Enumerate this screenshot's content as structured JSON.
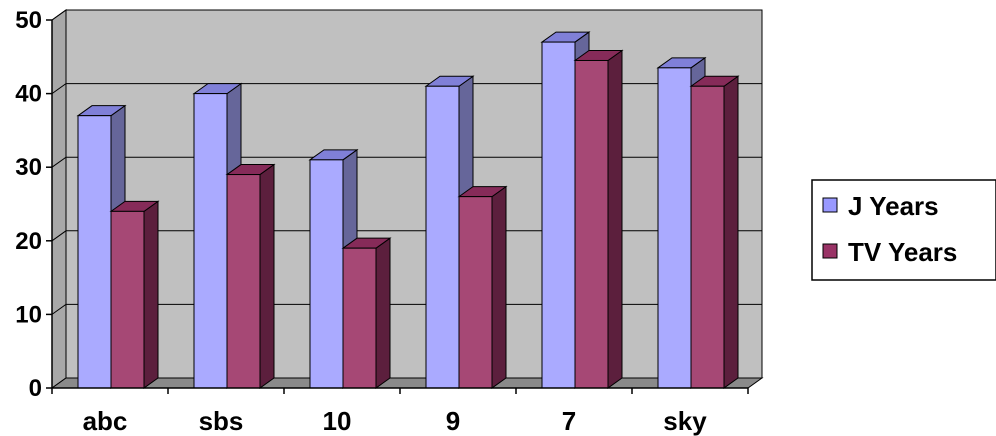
{
  "chart_data": {
    "type": "bar",
    "style": "3d-clustered-column",
    "categories": [
      "abc",
      "sbs",
      "10",
      "9",
      "7",
      "sky"
    ],
    "series": [
      {
        "name": "J Years",
        "values": [
          37,
          40,
          31,
          41,
          47,
          43.5
        ]
      },
      {
        "name": "TV Years",
        "values": [
          24,
          29,
          19,
          26,
          44.5,
          41
        ]
      }
    ],
    "yticks": [
      "0",
      "10",
      "20",
      "30",
      "40",
      "50"
    ],
    "ylim": [
      0,
      50
    ],
    "grid": true,
    "legend": "right",
    "colors": {
      "series": [
        "#9999ff",
        "#993366"
      ],
      "front": [
        "#aaaaff",
        "#a64875"
      ],
      "side": [
        "#66669a",
        "#5c1f3d"
      ],
      "top": [
        "#8080d8",
        "#862b59"
      ],
      "wall": "#c0c0c0",
      "floor": "#8a8a8a"
    }
  }
}
